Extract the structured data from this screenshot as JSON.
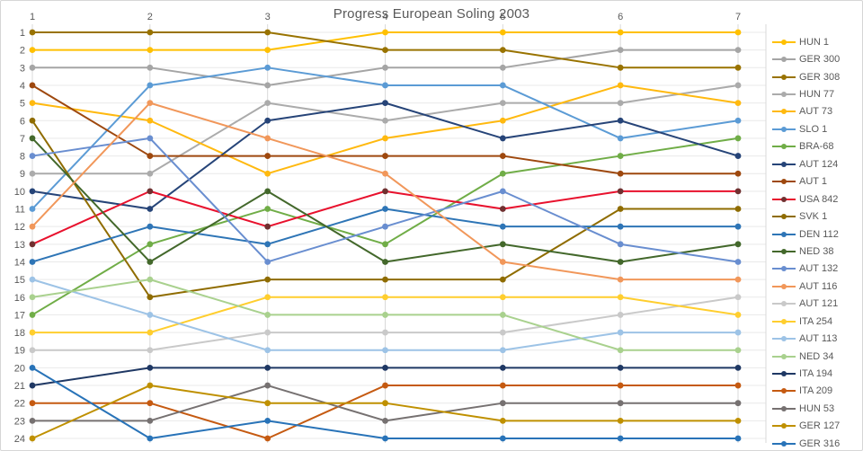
{
  "title": "Progress European Soling 2003",
  "chart_data": {
    "type": "line",
    "title": "Progress European Soling 2003",
    "xlabel": "",
    "ylabel": "",
    "x": [
      1,
      2,
      3,
      4,
      5,
      6,
      7
    ],
    "x_axis_position": "top",
    "y_inverted": true,
    "ylim": [
      1,
      24
    ],
    "grid": true,
    "legend_position": "right",
    "note": "y value = overall ranking position after each race; rank 1 is best",
    "series": [
      {
        "name": "HUN 1",
        "color": "#FFC000",
        "ranks": [
          2,
          2,
          2,
          1,
          1,
          1,
          1
        ]
      },
      {
        "name": "GER 300",
        "color": "#A5A5A5",
        "ranks": [
          3,
          3,
          4,
          3,
          3,
          2,
          2
        ]
      },
      {
        "name": "GER 308",
        "color": "#997300",
        "ranks": [
          1,
          1,
          1,
          2,
          2,
          3,
          3
        ]
      },
      {
        "name": "HUN 77",
        "color": "#ABABAB",
        "ranks": [
          9,
          9,
          5,
          6,
          5,
          5,
          4
        ]
      },
      {
        "name": "AUT 73",
        "color": "#FFB90F",
        "ranks": [
          5,
          6,
          9,
          7,
          6,
          4,
          5
        ]
      },
      {
        "name": "SLO 1",
        "color": "#5B9BD5",
        "ranks": [
          11,
          4,
          3,
          4,
          4,
          7,
          6
        ]
      },
      {
        "name": "BRA-68",
        "color": "#70AD47",
        "ranks": [
          17,
          13,
          11,
          13,
          9,
          8,
          7
        ]
      },
      {
        "name": "AUT 124",
        "color": "#264478",
        "ranks": [
          10,
          11,
          6,
          5,
          7,
          6,
          8
        ]
      },
      {
        "name": "AUT 1",
        "color": "#9E480E",
        "ranks": [
          4,
          8,
          8,
          8,
          8,
          9,
          9
        ]
      },
      {
        "name": "USA 842",
        "color": "#E8112D",
        "marker_color": "#703030",
        "ranks": [
          13,
          10,
          12,
          10,
          11,
          10,
          10
        ]
      },
      {
        "name": "SVK 1",
        "color": "#8F6C00",
        "ranks": [
          6,
          16,
          15,
          15,
          15,
          11,
          11
        ]
      },
      {
        "name": "DEN 112",
        "color": "#2E75B6",
        "ranks": [
          14,
          12,
          13,
          11,
          12,
          12,
          12
        ]
      },
      {
        "name": "NED 38",
        "color": "#43682B",
        "ranks": [
          7,
          14,
          10,
          14,
          13,
          14,
          13
        ]
      },
      {
        "name": "AUT 132",
        "color": "#698ED0",
        "ranks": [
          8,
          7,
          14,
          12,
          10,
          13,
          14
        ]
      },
      {
        "name": "AUT 116",
        "color": "#F1975A",
        "ranks": [
          12,
          5,
          7,
          9,
          14,
          15,
          15
        ]
      },
      {
        "name": "AUT 121",
        "color": "#C9C9C9",
        "ranks": [
          19,
          19,
          18,
          18,
          18,
          17,
          16
        ]
      },
      {
        "name": "ITA 254",
        "color": "#FFCE2E",
        "ranks": [
          18,
          18,
          16,
          16,
          16,
          16,
          17
        ]
      },
      {
        "name": "AUT 113",
        "color": "#9DC3E6",
        "ranks": [
          15,
          17,
          19,
          19,
          19,
          18,
          18
        ]
      },
      {
        "name": "NED 34",
        "color": "#A9D18E",
        "ranks": [
          16,
          15,
          17,
          17,
          17,
          19,
          19
        ]
      },
      {
        "name": "ITA 194",
        "color": "#1F3864",
        "ranks": [
          21,
          20,
          20,
          20,
          20,
          20,
          20
        ]
      },
      {
        "name": "ITA 209",
        "color": "#C55A11",
        "ranks": [
          22,
          22,
          24,
          21,
          21,
          21,
          21
        ]
      },
      {
        "name": "HUN 53",
        "color": "#767171",
        "ranks": [
          23,
          23,
          21,
          23,
          22,
          22,
          22
        ]
      },
      {
        "name": "GER 127",
        "color": "#BF9000",
        "ranks": [
          24,
          21,
          22,
          22,
          23,
          23,
          23
        ]
      },
      {
        "name": "GER 316",
        "color": "#2873B8",
        "ranks": [
          20,
          24,
          23,
          24,
          24,
          24,
          24
        ]
      }
    ]
  },
  "layout_colors": {
    "grid_vertical": "#D9D9D9",
    "grid_horizontal": "#E9E9E9",
    "axis_text": "#595959"
  }
}
